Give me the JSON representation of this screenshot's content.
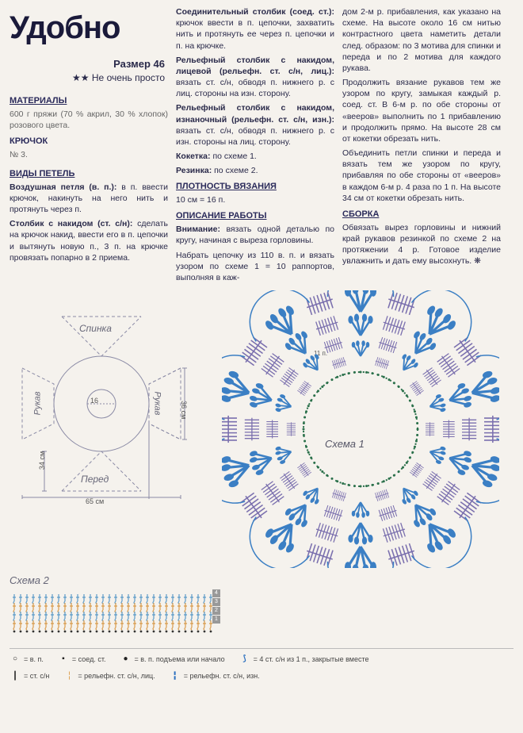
{
  "header": {
    "title": "Удобно",
    "size": "Размер 46",
    "difficulty_stars": "★★",
    "difficulty_text": "Не очень просто"
  },
  "materials": {
    "heading": "МАТЕРИАЛЫ",
    "yarn": "600 г пряжи (70 % акрил, 30 % хлопок) розового цвета.",
    "hook_label": "КРЮЧОК",
    "hook": "№ 3."
  },
  "stitches": {
    "heading": "ВИДЫ ПЕТЕЛЬ",
    "vp_label": "Воздушная петля (в. п.):",
    "vp_text": "в п. ввести крючок, накинуть на него нить и протянуть через п.",
    "sn_label": "Столбик с накидом (ст. с/н):",
    "sn_text": "сделать на крючок накид, ввести его в п. цепочки и вытянуть новую п., 3 п. на крючке провязать попарно в 2 приема."
  },
  "col2": {
    "ss_label": "Соединительный столбик (со­ед. ст.):",
    "ss_text": "крючок ввести в п. цепочки, захватить нить и протя­нуть ее через п. цепочки и п. на крючке.",
    "rel_lic_label": "Рельефный столбик с наки­дом, лицевой (рельефн. ст. с/н, лиц.):",
    "rel_lic_text": "вязать ст. с/н, об­водя п. нижнего р. с лиц. сторо­ны на изн. сторону.",
    "rel_izn_label": "Рельефный столбик с наки­дом, изнаночный (рельефн. ст. с/н, изн.):",
    "rel_izn_text": "вязать ст. с/н, об­водя п. нижнего р. с изн. сторо­ны на лиц. сторону.",
    "koketka_label": "Кокетка:",
    "koketka_text": "по схеме 1.",
    "rezinka_label": "Резинка:",
    "rezinka_text": "по схеме 2.",
    "density_heading": "ПЛОТНОСТЬ ВЯЗАНИЯ",
    "density_text": "10 см = 16 п.",
    "work_heading": "ОПИСАНИЕ РАБОТЫ",
    "attention_label": "Внимание:",
    "attention_text": "вязать одной де­талью по кругу, начиная с выреза горловины.",
    "chain_text": "Набрать цепочку из 110 в. п. и вязать узором по схеме 1 = 10 раппортов, выполняя в каж-"
  },
  "col3": {
    "p1": "дом 2-м р. прибавления, как указано на схеме. На высоте около 16 см нитью контрастного цвета наметить детали след. образом: по 3 мотива для спинки и переда и по 2 мотива для каждого рукава.",
    "p2": "Продолжить вязание рукавов тем же узором по кругу, замыкая каждый р. соед. ст. В 6-м р. по обе стороны от «вееров» выпол­нить по 1 прибавлению и продол­жить прямо. На высоте 28 см от кокетки обрезать нить.",
    "p3": "Объединить петли спинки и переда и вязать тем же узором по кругу, прибавляя по обе сто­роны от «вееров» в каждом 6-м р. 4 раза по 1 п. На высоте 34 см от кокетки обрезать нить.",
    "assembly_heading": "СБОРКА",
    "assembly_text": "Обвязать вырез горловины и нижний край рукавов резинкой по схеме 2 на протяжении 4 р. Готовое изделие увлажнить и дать ему высохнуть. ❋"
  },
  "diagrams": {
    "spinka": "Спинка",
    "pered": "Перед",
    "rukav": "Рукав",
    "schema1": "Схема 1",
    "schema2": "Схема 2",
    "dim_16": "16",
    "dim_36": "36 см",
    "dim_34": "34 см",
    "dim_65": "65 см",
    "dim_11p": "11 п.",
    "colors": {
      "outline": "#8a8aa5",
      "fan_blue": "#3b7fc4",
      "dc_purple": "#7a6fae",
      "dots": "#2a704a",
      "schema2_orange": "#d89a4a",
      "schema2_blue": "#5a9ac8"
    },
    "schema2_rows": [
      "4",
      "3",
      "2",
      "1"
    ]
  },
  "legend": {
    "items": [
      {
        "sym": "○",
        "cls": "sym-black",
        "text": "= в. п."
      },
      {
        "sym": "┃",
        "cls": "sym-black",
        "text": "= ст. с/н"
      },
      {
        "sym": "▪",
        "cls": "sym-black",
        "text": "= соед. ст."
      },
      {
        "sym": "╎",
        "cls": "sym-orange",
        "text": "= рельефн. ст. с/н, лиц."
      },
      {
        "sym": "●",
        "cls": "sym-black",
        "text": "= в. п. подъема или начало"
      },
      {
        "sym": "╏",
        "cls": "sym-blue",
        "text": "= рельефн. ст. с/н, изн."
      },
      {
        "sym": "⟆",
        "cls": "sym-blue",
        "text": "= 4 ст. с/н из 1 п., закрытые вместе"
      }
    ]
  }
}
